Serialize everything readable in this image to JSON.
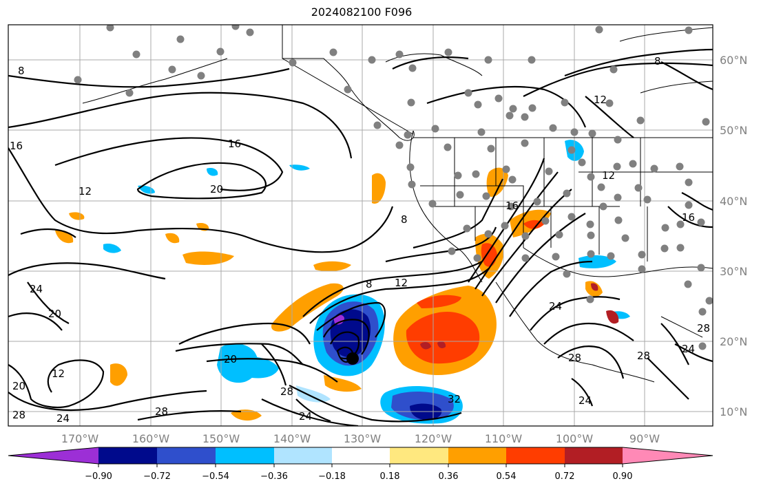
{
  "title": "2024082100 F096",
  "map": {
    "lon_labels": [
      "170°W",
      "160°W",
      "150°W",
      "140°W",
      "130°W",
      "120°W",
      "110°W",
      "100°W",
      "90°W"
    ],
    "lat_labels": [
      "60°N",
      "50°N",
      "40°N",
      "30°N",
      "20°N",
      "10°N"
    ],
    "contour_labels": [
      "8",
      "16",
      "20",
      "12",
      "8",
      "12",
      "16",
      "24",
      "20",
      "12",
      "20",
      "28",
      "24",
      "28",
      "20",
      "24",
      "28",
      "32",
      "8",
      "8",
      "12",
      "16",
      "16",
      "24",
      "28",
      "12",
      "24",
      "28",
      "28",
      "24"
    ],
    "colors": {
      "grid": "#a8a8a8",
      "contour": "#000000",
      "station": "#808080",
      "tick_label": "#808080"
    }
  },
  "colorbar": {
    "levels": [
      "−0.90",
      "−0.72",
      "−0.54",
      "−0.36",
      "−0.18",
      "0.18",
      "0.36",
      "0.54",
      "0.72",
      "0.90"
    ],
    "colors": [
      "#9c2fd6",
      "#000a8c",
      "#2f4fcc",
      "#00bfff",
      "#b0e4ff",
      "#ffffff",
      "#ffe87f",
      "#ff9f00",
      "#ff3d00",
      "#b21e24",
      "#ff89b6"
    ]
  }
}
